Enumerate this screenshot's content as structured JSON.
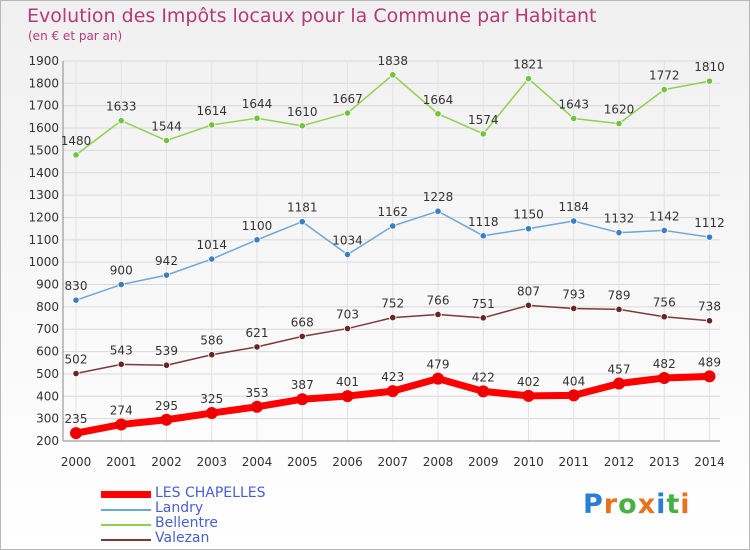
{
  "title": "Evolution des Impôts locaux pour la Commune par Habitant",
  "subtitle": "(en € et par an)",
  "logo": {
    "text": "Proxiti",
    "colors": [
      "#2a7fd4",
      "#e6731e",
      "#49b043",
      "#e6731e",
      "#2a7fd4",
      "#49b043",
      "#e6731e"
    ]
  },
  "chart_data": {
    "type": "line",
    "x": [
      2000,
      2001,
      2002,
      2003,
      2004,
      2005,
      2006,
      2007,
      2008,
      2009,
      2010,
      2011,
      2012,
      2013,
      2014
    ],
    "ylim": [
      200,
      1900
    ],
    "yticks": [
      200,
      300,
      400,
      500,
      600,
      700,
      800,
      900,
      1000,
      1100,
      1200,
      1300,
      1400,
      1500,
      1600,
      1700,
      1800,
      1900
    ],
    "grid": true,
    "legend_position": "bottom-left",
    "series": [
      {
        "name": "Bellentre",
        "color": "#8fd14f",
        "marker": "#6ec43a",
        "width": 1.5,
        "values": [
          1480,
          1633,
          1544,
          1614,
          1644,
          1610,
          1667,
          1838,
          1664,
          1574,
          1821,
          1643,
          1620,
          1772,
          1810
        ]
      },
      {
        "name": "Landry",
        "color": "#6ea6d8",
        "marker": "#3a7fc4",
        "width": 1.5,
        "values": [
          830,
          900,
          942,
          1014,
          1100,
          1181,
          1034,
          1162,
          1228,
          1118,
          1150,
          1184,
          1132,
          1142,
          1112
        ]
      },
      {
        "name": "Valezan",
        "color": "#7a3a3a",
        "marker": "#6a2424",
        "width": 1.5,
        "values": [
          502,
          543,
          539,
          586,
          621,
          668,
          703,
          752,
          766,
          751,
          807,
          793,
          789,
          756,
          738
        ]
      },
      {
        "name": "LES CHAPELLES",
        "color": "#ff0000",
        "marker": "#ee0000",
        "width": 7,
        "values": [
          235,
          274,
          295,
          325,
          353,
          387,
          401,
          423,
          479,
          422,
          402,
          404,
          457,
          482,
          489
        ]
      }
    ]
  },
  "legend": [
    {
      "label": "LES CHAPELLES",
      "color": "#ff0000",
      "thick": true
    },
    {
      "label": "Landry",
      "color": "#6ea6d8",
      "thick": false
    },
    {
      "label": "Bellentre",
      "color": "#8fd14f",
      "thick": false
    },
    {
      "label": "Valezan",
      "color": "#7a3a3a",
      "thick": false
    }
  ]
}
